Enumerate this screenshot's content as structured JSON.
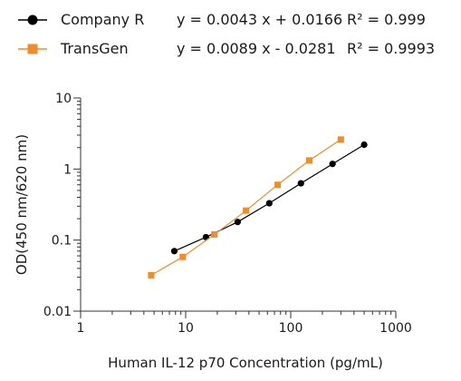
{
  "chart_data": {
    "type": "scatter",
    "title": "",
    "xlabel": "Human IL-12 p70 Concentration (pg/mL)",
    "ylabel": "OD(450 nm/620 nm)",
    "xscale": "log",
    "yscale": "log",
    "xlim": [
      1,
      1000
    ],
    "ylim": [
      0.01,
      10
    ],
    "x_ticks": [
      "1",
      "10",
      "100",
      "1000"
    ],
    "y_ticks": [
      "0.01",
      "0.1",
      "1",
      "10"
    ],
    "legend_position": "top",
    "series": [
      {
        "name": "Company R",
        "equation": "y = 0.0043 x + 0.0166",
        "r2": "R² = 0.999",
        "color": "#000000",
        "marker": "circle",
        "x": [
          7.8,
          15.6,
          31.25,
          62.5,
          125,
          250,
          500
        ],
        "y": [
          0.07,
          0.11,
          0.18,
          0.33,
          0.63,
          1.18,
          2.2
        ]
      },
      {
        "name": "TransGen",
        "equation": "y = 0.0089 x - 0.0281",
        "r2": "R² = 0.9993",
        "color": "#f28c28",
        "marker": "square",
        "x": [
          4.69,
          9.38,
          18.75,
          37.5,
          75,
          150,
          300
        ],
        "y": [
          0.032,
          0.058,
          0.12,
          0.26,
          0.6,
          1.32,
          2.6
        ]
      }
    ]
  }
}
